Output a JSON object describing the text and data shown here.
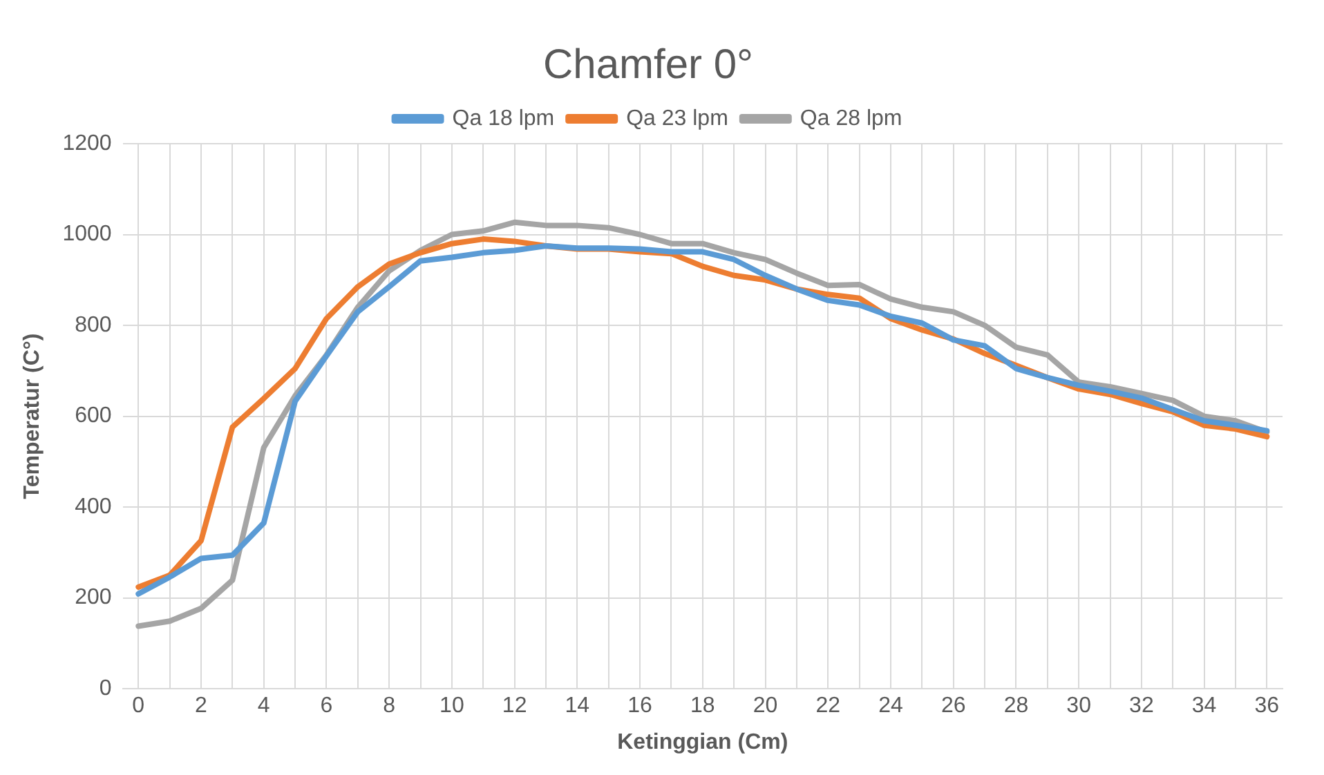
{
  "chart_data": {
    "type": "line",
    "title": "Chamfer 0°",
    "xlabel": "Ketinggian (Cm)",
    "ylabel": "Temperatur (C°)",
    "x": [
      0,
      1,
      2,
      3,
      4,
      5,
      6,
      7,
      8,
      9,
      10,
      11,
      12,
      13,
      14,
      15,
      16,
      17,
      18,
      19,
      20,
      21,
      22,
      23,
      24,
      25,
      26,
      27,
      28,
      29,
      30,
      31,
      32,
      33,
      34,
      35,
      36
    ],
    "xlim": [
      -0.5,
      36.5
    ],
    "xticks": [
      0,
      {
        "value": 1,
        "label": null
      },
      2,
      {
        "value": 3,
        "label": null
      },
      4,
      {
        "value": 5,
        "label": null
      },
      6,
      {
        "value": 7,
        "label": null
      },
      8,
      {
        "value": 9,
        "label": null
      },
      10,
      {
        "value": 11,
        "label": null
      },
      12,
      {
        "value": 13,
        "label": null
      },
      14,
      {
        "value": 15,
        "label": null
      },
      16,
      {
        "value": 17,
        "label": null
      },
      18,
      {
        "value": 19,
        "label": null
      },
      20,
      {
        "value": 21,
        "label": null
      },
      22,
      {
        "value": 23,
        "label": null
      },
      24,
      {
        "value": 25,
        "label": null
      },
      26,
      {
        "value": 27,
        "label": null
      },
      28,
      {
        "value": 29,
        "label": null
      },
      30,
      {
        "value": 31,
        "label": null
      },
      32,
      {
        "value": 33,
        "label": null
      },
      34,
      {
        "value": 35,
        "label": null
      },
      36
    ],
    "ylim": [
      0,
      1200
    ],
    "yticks": [
      0,
      200,
      400,
      600,
      800,
      1000,
      1200
    ],
    "grid": true,
    "legend": "top",
    "marker": "none",
    "line_style": "solid",
    "series": [
      {
        "name": "Qa 18 lpm",
        "color": "#5b9bd5",
        "values": [
          209,
          246,
          287,
          294,
          365,
          633,
          733,
          830,
          885,
          942,
          950,
          960,
          965,
          975,
          970,
          970,
          968,
          962,
          962,
          945,
          910,
          880,
          855,
          845,
          820,
          805,
          768,
          755,
          705,
          685,
          668,
          655,
          640,
          615,
          590,
          580,
          568
        ]
      },
      {
        "name": "Qa 23 lpm",
        "color": "#ed7d31",
        "values": [
          224,
          250,
          326,
          576,
          639,
          705,
          815,
          885,
          935,
          960,
          980,
          990,
          985,
          975,
          968,
          968,
          962,
          958,
          930,
          910,
          900,
          880,
          868,
          860,
          815,
          790,
          770,
          738,
          712,
          685,
          660,
          648,
          628,
          610,
          580,
          572,
          555
        ]
      },
      {
        "name": "Qa 28 lpm",
        "color": "#a5a5a5",
        "values": [
          138,
          149,
          177,
          239,
          531,
          645,
          735,
          840,
          920,
          965,
          1000,
          1008,
          1027,
          1020,
          1020,
          1015,
          1000,
          980,
          980,
          960,
          945,
          915,
          888,
          890,
          858,
          840,
          830,
          800,
          752,
          735,
          675,
          665,
          650,
          635,
          600,
          590,
          565
        ]
      }
    ]
  }
}
